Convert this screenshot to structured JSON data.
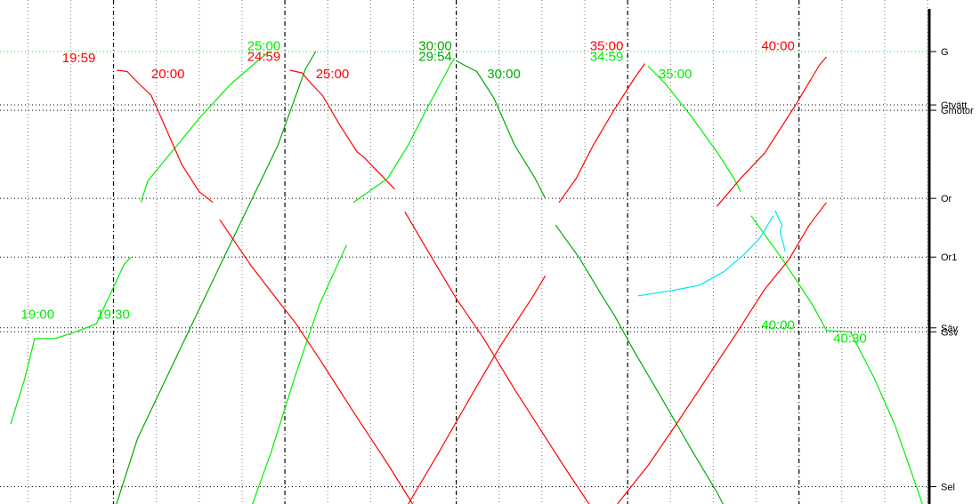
{
  "chart_data": {
    "type": "line",
    "title": "",
    "xlabel": "",
    "ylabel": "",
    "grid": true,
    "x_unit": "minutes",
    "x_range": [
      17.0,
      43.8
    ],
    "major_times": [
      20.0,
      25.0,
      30.0,
      35.0,
      40.0
    ],
    "stations": [
      {
        "name": "G",
        "km": 0.0
      },
      {
        "name": "Gtvätt",
        "km": 4.0
      },
      {
        "name": "Gmotor",
        "km": 4.4
      },
      {
        "name": "Or",
        "km": 11.0
      },
      {
        "name": "Or1",
        "km": 15.4
      },
      {
        "name": "Säv",
        "km": 20.7
      },
      {
        "name": "Gsv",
        "km": 21.0
      },
      {
        "name": "Sel",
        "km": 32.6
      }
    ],
    "y_range": [
      0.0,
      33.9
    ],
    "colors": {
      "red": "#ff0000",
      "green": "#00ee00",
      "darkgreen": "#00aa00",
      "cyan": "#00e5ee",
      "station_line": "#00ee00"
    },
    "series": [
      {
        "color": "darkgreen",
        "points": [
          [
            19.95,
            35.0
          ],
          [
            20.7,
            29.0
          ],
          [
            22.0,
            22.0
          ],
          [
            23.3,
            15.0
          ],
          [
            24.8,
            7.0
          ],
          [
            25.6,
            1.3
          ],
          [
            25.9,
            0.0
          ]
        ]
      },
      {
        "color": "green",
        "points": [
          [
            17.0,
            27.9
          ],
          [
            17.4,
            24.6
          ],
          [
            17.7,
            21.5
          ],
          [
            18.3,
            21.5
          ],
          [
            18.9,
            21.0
          ],
          [
            19.5,
            20.4
          ],
          [
            20.3,
            16.0
          ],
          [
            20.5,
            15.4
          ]
        ]
      },
      {
        "color": "green",
        "points": [
          [
            20.8,
            11.3
          ],
          [
            21.0,
            9.7
          ],
          [
            21.8,
            7.2
          ],
          [
            22.5,
            5.0
          ],
          [
            23.4,
            2.5
          ],
          [
            24.2,
            0.7
          ],
          [
            24.55,
            0.0
          ]
        ]
      },
      {
        "color": "red",
        "points": [
          [
            20.1,
            1.4
          ],
          [
            20.4,
            1.5
          ],
          [
            20.7,
            2.3
          ],
          [
            21.1,
            3.3
          ],
          [
            21.4,
            5.0
          ],
          [
            22.0,
            8.5
          ],
          [
            22.5,
            10.5
          ],
          [
            22.9,
            11.3
          ]
        ]
      },
      {
        "color": "red",
        "points": [
          [
            23.1,
            12.6
          ],
          [
            24.0,
            16.0
          ],
          [
            24.9,
            19.0
          ],
          [
            25.3,
            20.3
          ],
          [
            26.0,
            23.0
          ],
          [
            27.0,
            27.0
          ],
          [
            28.0,
            30.9
          ],
          [
            28.75,
            34.0
          ]
        ]
      },
      {
        "color": "red",
        "points": [
          [
            25.15,
            1.4
          ],
          [
            25.5,
            1.6
          ],
          [
            25.8,
            2.5
          ],
          [
            26.1,
            3.3
          ],
          [
            26.6,
            5.5
          ],
          [
            27.1,
            7.5
          ],
          [
            27.3,
            7.9
          ],
          [
            28.2,
            10.3
          ]
        ]
      },
      {
        "color": "red",
        "points": [
          [
            28.5,
            12.0
          ],
          [
            29.3,
            15.5
          ],
          [
            30.0,
            18.5
          ],
          [
            30.8,
            21.5
          ],
          [
            31.7,
            25.3
          ],
          [
            32.5,
            28.5
          ],
          [
            33.2,
            31.3
          ],
          [
            33.9,
            34.0
          ]
        ]
      },
      {
        "color": "green",
        "points": [
          [
            23.9,
            35.0
          ],
          [
            24.6,
            30.0
          ],
          [
            25.3,
            24.3
          ],
          [
            26.0,
            19.0
          ],
          [
            26.6,
            15.6
          ],
          [
            26.8,
            14.5
          ]
        ]
      },
      {
        "color": "green",
        "points": [
          [
            27.0,
            11.3
          ],
          [
            28.0,
            9.5
          ],
          [
            28.6,
            7.0
          ],
          [
            29.2,
            4.0
          ],
          [
            29.85,
            0.9
          ],
          [
            29.95,
            0.5
          ]
        ]
      },
      {
        "color": "darkgreen",
        "points": [
          [
            30.0,
            0.7
          ],
          [
            30.6,
            1.5
          ],
          [
            31.1,
            3.5
          ],
          [
            31.7,
            7.0
          ],
          [
            32.3,
            9.5
          ],
          [
            32.6,
            11.0
          ]
        ]
      },
      {
        "color": "darkgreen",
        "points": [
          [
            32.9,
            13.0
          ],
          [
            33.6,
            15.5
          ],
          [
            34.3,
            18.5
          ],
          [
            34.6,
            19.7
          ],
          [
            35.2,
            22.5
          ],
          [
            36.0,
            26.0
          ],
          [
            36.9,
            30.0
          ],
          [
            37.6,
            33.0
          ],
          [
            37.8,
            34.0
          ]
        ]
      },
      {
        "color": "red",
        "points": [
          [
            28.6,
            33.9
          ],
          [
            29.5,
            30.0
          ],
          [
            30.5,
            25.5
          ],
          [
            31.3,
            22.0
          ],
          [
            32.2,
            18.5
          ],
          [
            32.6,
            16.8
          ]
        ]
      },
      {
        "color": "red",
        "points": [
          [
            33.0,
            11.3
          ],
          [
            33.5,
            9.5
          ],
          [
            34.0,
            7.0
          ],
          [
            34.6,
            4.4
          ],
          [
            35.2,
            2.0
          ],
          [
            35.5,
            0.9
          ]
        ]
      },
      {
        "color": "green",
        "points": [
          [
            35.6,
            1.1
          ],
          [
            36.1,
            2.4
          ],
          [
            36.9,
            5.0
          ],
          [
            37.6,
            7.5
          ],
          [
            38.1,
            9.5
          ],
          [
            38.3,
            10.5
          ]
        ]
      },
      {
        "color": "green",
        "points": [
          [
            38.6,
            12.3
          ],
          [
            39.5,
            15.5
          ],
          [
            40.4,
            19.0
          ],
          [
            40.8,
            20.9
          ],
          [
            41.5,
            21.0
          ],
          [
            42.2,
            24.5
          ],
          [
            42.8,
            28.0
          ],
          [
            43.6,
            33.9
          ]
        ]
      },
      {
        "color": "red",
        "points": [
          [
            34.7,
            33.9
          ],
          [
            35.6,
            31.0
          ],
          [
            36.4,
            28.0
          ],
          [
            37.3,
            24.5
          ],
          [
            38.2,
            21.0
          ],
          [
            39.0,
            17.8
          ],
          [
            39.7,
            15.6
          ],
          [
            40.3,
            13.0
          ],
          [
            40.8,
            11.3
          ]
        ]
      },
      {
        "color": "red",
        "points": [
          [
            37.6,
            11.6
          ],
          [
            38.3,
            9.5
          ],
          [
            39.0,
            7.6
          ],
          [
            39.9,
            4.0
          ],
          [
            40.6,
            1.0
          ],
          [
            40.8,
            0.4
          ]
        ]
      },
      {
        "color": "cyan",
        "points": [
          [
            35.3,
            18.3
          ],
          [
            36.3,
            17.9
          ],
          [
            37.1,
            17.5
          ],
          [
            37.8,
            16.5
          ],
          [
            38.4,
            15.2
          ],
          [
            38.85,
            14.0
          ],
          [
            39.25,
            12.3
          ]
        ]
      },
      {
        "color": "cyan",
        "points": [
          [
            39.3,
            11.9
          ],
          [
            39.5,
            13.0
          ],
          [
            39.45,
            13.5
          ],
          [
            39.6,
            15.0
          ]
        ]
      }
    ],
    "annotations": [
      {
        "text": "19:59",
        "color": "red",
        "x": 18.5,
        "y": 0.8
      },
      {
        "text": "20:00",
        "color": "red",
        "x": 21.1,
        "y": 2.0
      },
      {
        "text": "24:59",
        "color": "red",
        "x": 23.9,
        "y": 0.7
      },
      {
        "text": "25:00",
        "color": "green",
        "x": 23.9,
        "y": -0.1
      },
      {
        "text": "25:00",
        "color": "red",
        "x": 25.9,
        "y": 2.0
      },
      {
        "text": "30:00",
        "color": "darkgreen",
        "x": 28.9,
        "y": -0.1
      },
      {
        "text": "29:54",
        "color": "darkgreen",
        "x": 28.9,
        "y": 0.7
      },
      {
        "text": "30:00",
        "color": "darkgreen",
        "x": 30.9,
        "y": 2.0
      },
      {
        "text": "35:00",
        "color": "red",
        "x": 33.9,
        "y": -0.1
      },
      {
        "text": "34:59",
        "color": "green",
        "x": 33.9,
        "y": 0.7
      },
      {
        "text": "35:00",
        "color": "green",
        "x": 35.9,
        "y": 2.0
      },
      {
        "text": "40:00",
        "color": "red",
        "x": 38.9,
        "y": -0.1
      },
      {
        "text": "19:00",
        "color": "green",
        "x": 17.3,
        "y": 20.0
      },
      {
        "text": "19:30",
        "color": "green",
        "x": 19.5,
        "y": 20.0
      },
      {
        "text": "40:00",
        "color": "green",
        "x": 38.9,
        "y": 20.8
      },
      {
        "text": "40:30",
        "color": "green",
        "x": 41.0,
        "y": 21.8
      }
    ]
  }
}
